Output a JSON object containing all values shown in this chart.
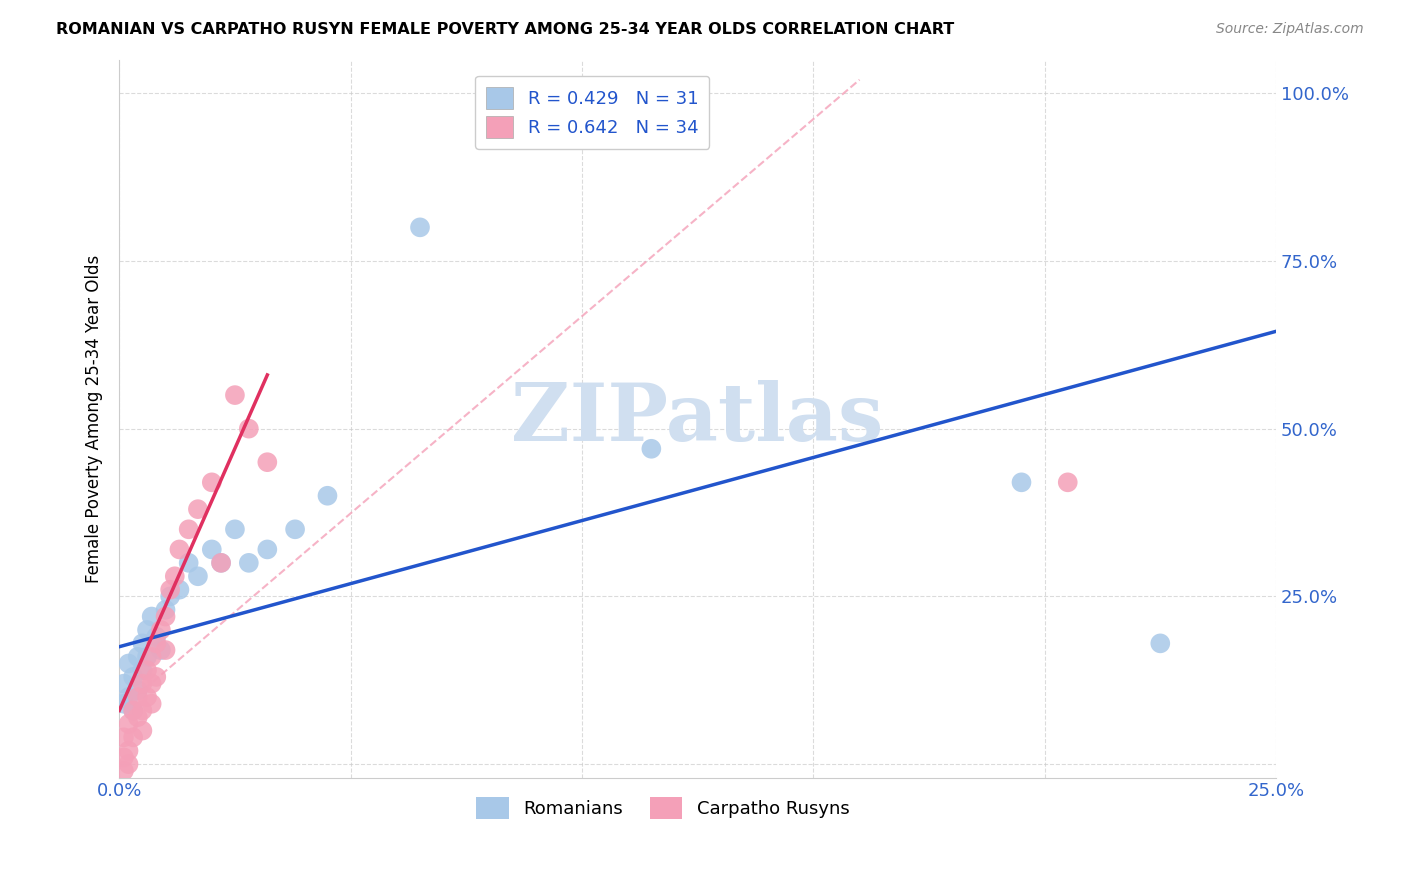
{
  "title": "ROMANIAN VS CARPATHO RUSYN FEMALE POVERTY AMONG 25-34 YEAR OLDS CORRELATION CHART",
  "source": "Source: ZipAtlas.com",
  "ylabel": "Female Poverty Among 25-34 Year Olds",
  "xlim": [
    0.0,
    0.25
  ],
  "ylim": [
    -0.02,
    1.05
  ],
  "xticks": [
    0.0,
    0.05,
    0.1,
    0.15,
    0.2,
    0.25
  ],
  "yticks": [
    0.0,
    0.25,
    0.5,
    0.75,
    1.0
  ],
  "romanian_R": 0.429,
  "romanian_N": 31,
  "carpatho_R": 0.642,
  "carpatho_N": 34,
  "romanian_color": "#a8c8e8",
  "carpatho_color": "#f4a0b8",
  "romanian_line_color": "#2255cc",
  "carpatho_line_color": "#e03060",
  "watermark": "ZIPatlas",
  "watermark_color": "#d0dff0",
  "background_color": "#ffffff",
  "grid_color": "#cccccc",
  "marker_size": 200,
  "romanian_x": [
    0.001,
    0.001,
    0.002,
    0.002,
    0.003,
    0.003,
    0.004,
    0.004,
    0.005,
    0.005,
    0.006,
    0.006,
    0.007,
    0.008,
    0.009,
    0.01,
    0.011,
    0.013,
    0.015,
    0.017,
    0.02,
    0.022,
    0.025,
    0.028,
    0.032,
    0.038,
    0.045,
    0.065,
    0.115,
    0.195,
    0.225
  ],
  "romanian_y": [
    0.12,
    0.09,
    0.15,
    0.1,
    0.13,
    0.08,
    0.16,
    0.11,
    0.18,
    0.14,
    0.2,
    0.16,
    0.22,
    0.19,
    0.17,
    0.23,
    0.25,
    0.26,
    0.3,
    0.28,
    0.32,
    0.3,
    0.35,
    0.3,
    0.32,
    0.35,
    0.4,
    0.8,
    0.47,
    0.42,
    0.18
  ],
  "carpatho_x": [
    0.001,
    0.001,
    0.001,
    0.002,
    0.002,
    0.002,
    0.003,
    0.003,
    0.004,
    0.004,
    0.005,
    0.005,
    0.005,
    0.006,
    0.006,
    0.007,
    0.007,
    0.007,
    0.008,
    0.008,
    0.009,
    0.01,
    0.01,
    0.011,
    0.012,
    0.013,
    0.015,
    0.017,
    0.02,
    0.022,
    0.025,
    0.028,
    0.032,
    0.205
  ],
  "carpatho_y": [
    0.04,
    0.01,
    -0.01,
    0.06,
    0.02,
    0.0,
    0.08,
    0.04,
    0.1,
    0.07,
    0.12,
    0.08,
    0.05,
    0.14,
    0.1,
    0.16,
    0.12,
    0.09,
    0.18,
    0.13,
    0.2,
    0.22,
    0.17,
    0.26,
    0.28,
    0.32,
    0.35,
    0.38,
    0.42,
    0.3,
    0.55,
    0.5,
    0.45,
    0.42
  ],
  "blue_line_x0": 0.0,
  "blue_line_y0": 0.175,
  "blue_line_x1": 0.25,
  "blue_line_y1": 0.645,
  "pink_line_x0": 0.0,
  "pink_line_y0": 0.08,
  "pink_line_x1": 0.032,
  "pink_line_y1": 0.58,
  "dash_line_x0": 0.0,
  "dash_line_y0": 0.08,
  "dash_line_x1": 0.16,
  "dash_line_y1": 1.02
}
